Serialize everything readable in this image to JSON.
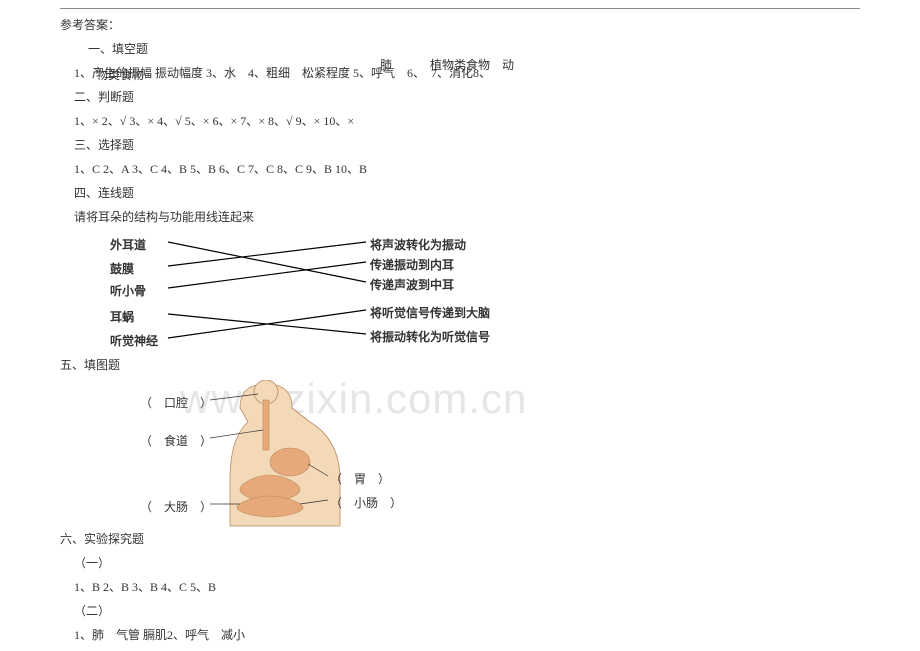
{
  "header": "参考答案：",
  "sec1": {
    "title": "一、填空题",
    "q1_line": "1、产生的振幅 振动幅度 3、水　4、粗细　松紧程度 5、呼气　6、　7、消化8、",
    "q1_overlay1": "肺",
    "q1_overlay2": "植物类食物　动",
    "q1_overlay3": "物类食物"
  },
  "sec2": {
    "title": "二、判断题",
    "answers": "1、× 2、√ 3、× 4、√ 5、× 6、× 7、× 8、√ 9、× 10、×"
  },
  "sec3": {
    "title": "三、选择题",
    "answers": "1、C 2、A 3、C 4、B 5、B 6、C 7、C 8、C 9、B 10、B"
  },
  "sec4": {
    "title": "四、连线题",
    "prompt": "请将耳朵的结构与功能用线连起来",
    "left": [
      "外耳道",
      "鼓膜",
      "听小骨",
      "耳蜗",
      "听觉神经"
    ],
    "right": [
      "将声波转化为振动",
      "传递振动到内耳",
      "传递声波到中耳",
      "将听觉信号传递到大脑",
      "将振动转化为听觉信号"
    ],
    "connections": [
      [
        0,
        2
      ],
      [
        1,
        0
      ],
      [
        2,
        1
      ],
      [
        3,
        4
      ],
      [
        4,
        3
      ]
    ],
    "line_color": "#000000",
    "label_weight": "bold"
  },
  "sec5": {
    "title": "五、填图题",
    "labels": {
      "l1": "（　口腔　）",
      "l2": "（　食道　）",
      "l3": "（　大肠　）",
      "r1": "（　胃　）",
      "r2": "（　小肠　）"
    },
    "figure": {
      "skin_color": "#f3d9b8",
      "organ_color": "#e7a87a",
      "outline": "#b88a60"
    }
  },
  "sec6": {
    "title": "六、实验探究题",
    "p1": "（一）",
    "a1": "1、B 2、B 3、B 4、C 5、B",
    "p2": "（二）",
    "a2": "1、肺　气管 膈肌2、呼气　减小"
  },
  "watermark": "www.zixin.com.cn"
}
